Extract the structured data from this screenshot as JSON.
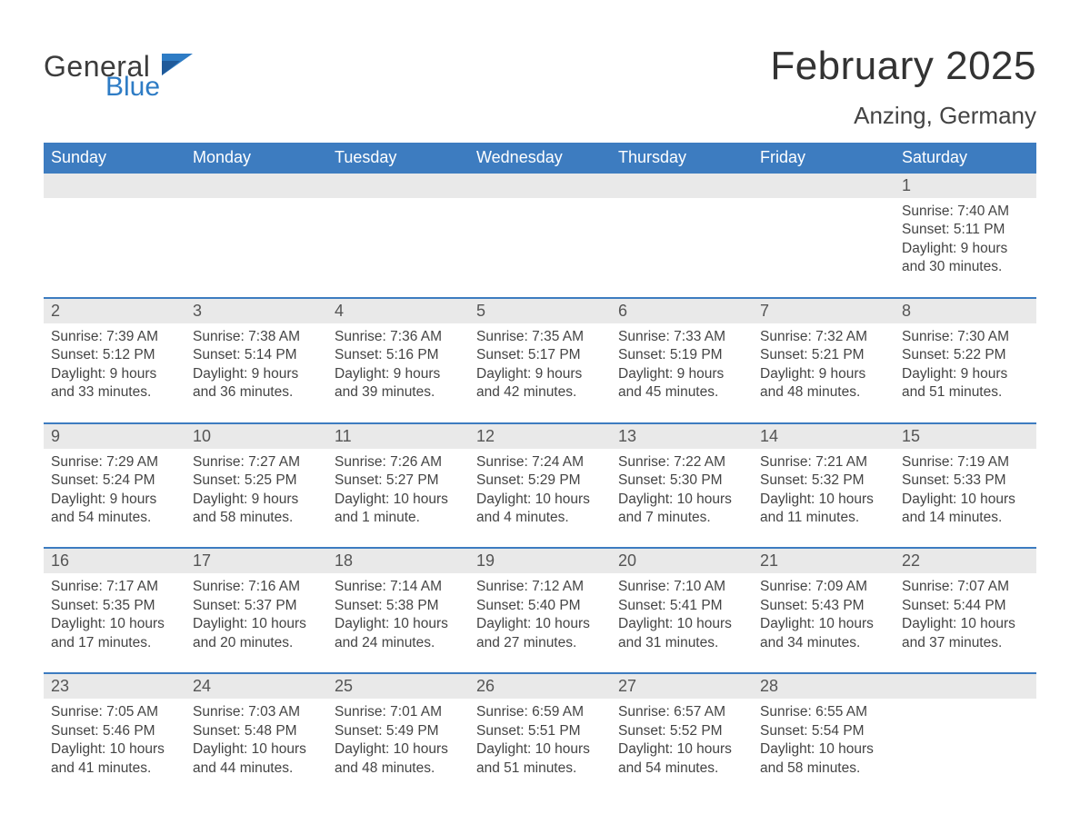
{
  "logo": {
    "word1": "General",
    "word2": "Blue"
  },
  "header": {
    "title": "February 2025",
    "location": "Anzing, Germany"
  },
  "colors": {
    "blue_header": "#3d7cc0",
    "blue_line": "#3d7cc0",
    "day_header_bg": "#e9e9e9",
    "text_dark": "#333333",
    "bg": "#ffffff"
  },
  "weekdays": [
    "Sunday",
    "Monday",
    "Tuesday",
    "Wednesday",
    "Thursday",
    "Friday",
    "Saturday"
  ],
  "calendar": {
    "type": "table",
    "first_weekday_index": 6,
    "weeks": [
      [
        null,
        null,
        null,
        null,
        null,
        null,
        {
          "day": "1",
          "sunrise": "Sunrise: 7:40 AM",
          "sunset": "Sunset: 5:11 PM",
          "dl1": "Daylight: 9 hours",
          "dl2": "and 30 minutes."
        }
      ],
      [
        {
          "day": "2",
          "sunrise": "Sunrise: 7:39 AM",
          "sunset": "Sunset: 5:12 PM",
          "dl1": "Daylight: 9 hours",
          "dl2": "and 33 minutes."
        },
        {
          "day": "3",
          "sunrise": "Sunrise: 7:38 AM",
          "sunset": "Sunset: 5:14 PM",
          "dl1": "Daylight: 9 hours",
          "dl2": "and 36 minutes."
        },
        {
          "day": "4",
          "sunrise": "Sunrise: 7:36 AM",
          "sunset": "Sunset: 5:16 PM",
          "dl1": "Daylight: 9 hours",
          "dl2": "and 39 minutes."
        },
        {
          "day": "5",
          "sunrise": "Sunrise: 7:35 AM",
          "sunset": "Sunset: 5:17 PM",
          "dl1": "Daylight: 9 hours",
          "dl2": "and 42 minutes."
        },
        {
          "day": "6",
          "sunrise": "Sunrise: 7:33 AM",
          "sunset": "Sunset: 5:19 PM",
          "dl1": "Daylight: 9 hours",
          "dl2": "and 45 minutes."
        },
        {
          "day": "7",
          "sunrise": "Sunrise: 7:32 AM",
          "sunset": "Sunset: 5:21 PM",
          "dl1": "Daylight: 9 hours",
          "dl2": "and 48 minutes."
        },
        {
          "day": "8",
          "sunrise": "Sunrise: 7:30 AM",
          "sunset": "Sunset: 5:22 PM",
          "dl1": "Daylight: 9 hours",
          "dl2": "and 51 minutes."
        }
      ],
      [
        {
          "day": "9",
          "sunrise": "Sunrise: 7:29 AM",
          "sunset": "Sunset: 5:24 PM",
          "dl1": "Daylight: 9 hours",
          "dl2": "and 54 minutes."
        },
        {
          "day": "10",
          "sunrise": "Sunrise: 7:27 AM",
          "sunset": "Sunset: 5:25 PM",
          "dl1": "Daylight: 9 hours",
          "dl2": "and 58 minutes."
        },
        {
          "day": "11",
          "sunrise": "Sunrise: 7:26 AM",
          "sunset": "Sunset: 5:27 PM",
          "dl1": "Daylight: 10 hours",
          "dl2": "and 1 minute."
        },
        {
          "day": "12",
          "sunrise": "Sunrise: 7:24 AM",
          "sunset": "Sunset: 5:29 PM",
          "dl1": "Daylight: 10 hours",
          "dl2": "and 4 minutes."
        },
        {
          "day": "13",
          "sunrise": "Sunrise: 7:22 AM",
          "sunset": "Sunset: 5:30 PM",
          "dl1": "Daylight: 10 hours",
          "dl2": "and 7 minutes."
        },
        {
          "day": "14",
          "sunrise": "Sunrise: 7:21 AM",
          "sunset": "Sunset: 5:32 PM",
          "dl1": "Daylight: 10 hours",
          "dl2": "and 11 minutes."
        },
        {
          "day": "15",
          "sunrise": "Sunrise: 7:19 AM",
          "sunset": "Sunset: 5:33 PM",
          "dl1": "Daylight: 10 hours",
          "dl2": "and 14 minutes."
        }
      ],
      [
        {
          "day": "16",
          "sunrise": "Sunrise: 7:17 AM",
          "sunset": "Sunset: 5:35 PM",
          "dl1": "Daylight: 10 hours",
          "dl2": "and 17 minutes."
        },
        {
          "day": "17",
          "sunrise": "Sunrise: 7:16 AM",
          "sunset": "Sunset: 5:37 PM",
          "dl1": "Daylight: 10 hours",
          "dl2": "and 20 minutes."
        },
        {
          "day": "18",
          "sunrise": "Sunrise: 7:14 AM",
          "sunset": "Sunset: 5:38 PM",
          "dl1": "Daylight: 10 hours",
          "dl2": "and 24 minutes."
        },
        {
          "day": "19",
          "sunrise": "Sunrise: 7:12 AM",
          "sunset": "Sunset: 5:40 PM",
          "dl1": "Daylight: 10 hours",
          "dl2": "and 27 minutes."
        },
        {
          "day": "20",
          "sunrise": "Sunrise: 7:10 AM",
          "sunset": "Sunset: 5:41 PM",
          "dl1": "Daylight: 10 hours",
          "dl2": "and 31 minutes."
        },
        {
          "day": "21",
          "sunrise": "Sunrise: 7:09 AM",
          "sunset": "Sunset: 5:43 PM",
          "dl1": "Daylight: 10 hours",
          "dl2": "and 34 minutes."
        },
        {
          "day": "22",
          "sunrise": "Sunrise: 7:07 AM",
          "sunset": "Sunset: 5:44 PM",
          "dl1": "Daylight: 10 hours",
          "dl2": "and 37 minutes."
        }
      ],
      [
        {
          "day": "23",
          "sunrise": "Sunrise: 7:05 AM",
          "sunset": "Sunset: 5:46 PM",
          "dl1": "Daylight: 10 hours",
          "dl2": "and 41 minutes."
        },
        {
          "day": "24",
          "sunrise": "Sunrise: 7:03 AM",
          "sunset": "Sunset: 5:48 PM",
          "dl1": "Daylight: 10 hours",
          "dl2": "and 44 minutes."
        },
        {
          "day": "25",
          "sunrise": "Sunrise: 7:01 AM",
          "sunset": "Sunset: 5:49 PM",
          "dl1": "Daylight: 10 hours",
          "dl2": "and 48 minutes."
        },
        {
          "day": "26",
          "sunrise": "Sunrise: 6:59 AM",
          "sunset": "Sunset: 5:51 PM",
          "dl1": "Daylight: 10 hours",
          "dl2": "and 51 minutes."
        },
        {
          "day": "27",
          "sunrise": "Sunrise: 6:57 AM",
          "sunset": "Sunset: 5:52 PM",
          "dl1": "Daylight: 10 hours",
          "dl2": "and 54 minutes."
        },
        {
          "day": "28",
          "sunrise": "Sunrise: 6:55 AM",
          "sunset": "Sunset: 5:54 PM",
          "dl1": "Daylight: 10 hours",
          "dl2": "and 58 minutes."
        },
        null
      ]
    ]
  }
}
